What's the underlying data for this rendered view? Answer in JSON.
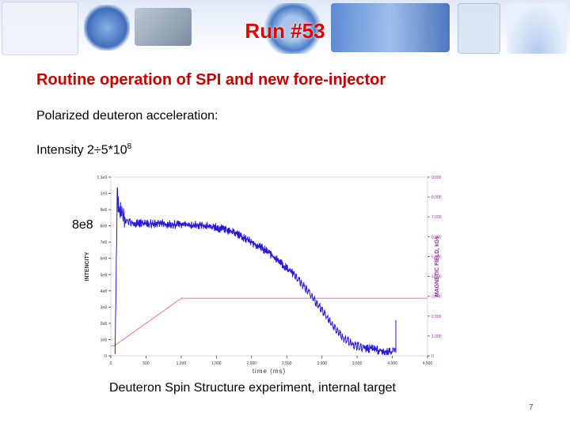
{
  "slide": {
    "title": "Run #53",
    "subtitle": "Routine operation of SPI and new fore-injector",
    "line1": "Polarized deuteron acceleration:",
    "intensity_label": "Intensity 2÷5*10",
    "intensity_exp": "8",
    "side_note": "8e8",
    "caption": "Deuteron Spin Structure experiment, internal target",
    "page_number": "7"
  },
  "colors": {
    "title": "#e00000",
    "subtitle": "#c00000",
    "intensity_trace": "#2a1ad8",
    "field_trace": "#e08aa8",
    "axis_left": "#333333",
    "axis_right": "#9a2ca0"
  },
  "chart_data": {
    "type": "line",
    "xlabel": "time (ms)",
    "ylabel": "INTENCITY",
    "ylabel_right": "MAGNETIC FIELD, kGs",
    "x_ticks": [
      "0",
      "500",
      "1,000",
      "1,500",
      "2,000",
      "2,500",
      "3,000",
      "3,500",
      "4,000",
      "4,500"
    ],
    "y_ticks": [
      "0",
      "1e8",
      "2e8",
      "3e8",
      "4e8",
      "5e8",
      "6e8",
      "7e8",
      "8e8",
      "9e8",
      "1e9",
      "1.1e9"
    ],
    "y2_ticks": [
      "0",
      "1,000",
      "2,000",
      "3,000",
      "4,000",
      "5,000",
      "6,000",
      "7,000",
      "8,000",
      "9,000"
    ],
    "xlim": [
      0,
      4500
    ],
    "ylim": [
      0,
      1100000000
    ],
    "y2lim": [
      0,
      9000
    ],
    "series": [
      {
        "name": "INTENCITY",
        "x": [
          60,
          90,
          120,
          200,
          300,
          500,
          800,
          1100,
          1400,
          1600,
          1800,
          2000,
          2200,
          2400,
          2600,
          2700,
          2800,
          2900,
          3000,
          3100,
          3200,
          3300,
          3400,
          3500,
          3600,
          3800,
          4000,
          4050
        ],
        "values": [
          0,
          980000000,
          900000000,
          840000000,
          820000000,
          815000000,
          810000000,
          805000000,
          800000000,
          780000000,
          750000000,
          700000000,
          650000000,
          580000000,
          500000000,
          450000000,
          400000000,
          340000000,
          280000000,
          220000000,
          160000000,
          110000000,
          80000000,
          60000000,
          50000000,
          35000000,
          25000000,
          20000000
        ]
      },
      {
        "name": "MAGNETIC FIELD, kGs",
        "axis": "right",
        "x": [
          0,
          50,
          1000,
          4500
        ],
        "values": [
          500,
          500,
          2900,
          2900
        ]
      }
    ]
  }
}
